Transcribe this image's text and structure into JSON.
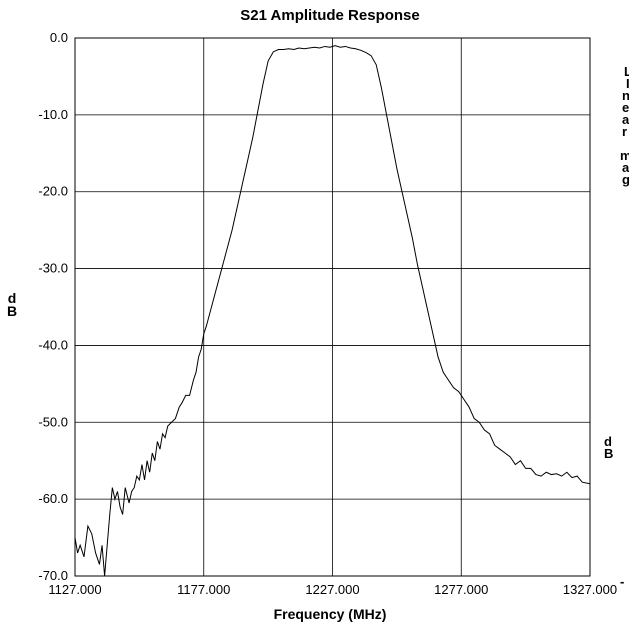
{
  "chart_data": {
    "type": "line",
    "title": "S21  Amplitude Response",
    "xlabel": "Frequency (MHz)",
    "ylabel": "d\nB",
    "xlim": [
      1127,
      1327
    ],
    "ylim": [
      -70,
      0
    ],
    "x_ticks": [
      "1127.000",
      "1177.000",
      "1227.000",
      "1277.000",
      "1327.000"
    ],
    "y_ticks": [
      "0.0",
      "-10.0",
      "-20.0",
      "-30.0",
      "-40.0",
      "-50.0",
      "-60.0",
      "-70.0"
    ],
    "grid": true,
    "series": [
      {
        "name": "",
        "color": "#000000",
        "x": [
          1127.0,
          1128.0,
          1129.0,
          1130.5,
          1132.0,
          1133.5,
          1135.0,
          1136.5,
          1137.5,
          1138.5,
          1139.5,
          1140.5,
          1141.5,
          1142.5,
          1143.5,
          1144.5,
          1145.5,
          1146.5,
          1148.0,
          1149.0,
          1150.0,
          1151.0,
          1152.0,
          1153.0,
          1154.0,
          1155.0,
          1156.0,
          1157.0,
          1158.0,
          1159.0,
          1160.0,
          1161.0,
          1162.0,
          1163.0,
          1164.5,
          1166.0,
          1167.5,
          1168.5,
          1170.0,
          1171.5,
          1173.0,
          1174.0,
          1175.0,
          1176.0,
          1177.0,
          1178.0,
          1180.0,
          1182.0,
          1184.0,
          1186.0,
          1188.0,
          1190.0,
          1192.0,
          1194.0,
          1196.0,
          1198.0,
          1200.0,
          1202.0,
          1204.0,
          1206.0,
          1208.0,
          1210.0,
          1212.0,
          1214.0,
          1216.0,
          1218.0,
          1220.0,
          1222.0,
          1224.0,
          1226.0,
          1228.0,
          1230.0,
          1232.0,
          1234.0,
          1236.0,
          1238.0,
          1240.0,
          1242.0,
          1244.0,
          1246.0,
          1248.0,
          1250.0,
          1252.0,
          1254.0,
          1256.0,
          1258.0,
          1260.0,
          1262.0,
          1264.0,
          1266.0,
          1268.0,
          1270.0,
          1272.0,
          1274.0,
          1276.0,
          1278.0,
          1280.0,
          1282.0,
          1284.0,
          1286.0,
          1288.0,
          1290.0,
          1292.0,
          1294.0,
          1296.0,
          1298.0,
          1300.0,
          1302.0,
          1304.0,
          1306.0,
          1308.0,
          1310.0,
          1312.0,
          1314.0,
          1316.0,
          1318.0,
          1320.0,
          1322.0,
          1324.0,
          1327.0
        ],
        "y": [
          -65.0,
          -67.0,
          -66.0,
          -67.5,
          -63.5,
          -64.5,
          -67.0,
          -68.5,
          -66.0,
          -70.0,
          -66.0,
          -62.0,
          -58.5,
          -60.0,
          -59.0,
          -61.0,
          -62.0,
          -58.5,
          -60.5,
          -59.0,
          -58.5,
          -57.0,
          -57.5,
          -55.5,
          -57.5,
          -55.0,
          -56.5,
          -54.0,
          -55.0,
          -52.5,
          -53.5,
          -51.5,
          -52.0,
          -50.5,
          -50.0,
          -49.5,
          -48.0,
          -47.5,
          -46.5,
          -46.5,
          -44.5,
          -43.5,
          -41.5,
          -40.5,
          -38.5,
          -37.5,
          -35.0,
          -32.5,
          -30.0,
          -27.5,
          -25.0,
          -22.0,
          -19.0,
          -16.0,
          -13.0,
          -9.5,
          -6.0,
          -3.0,
          -1.8,
          -1.5,
          -1.5,
          -1.4,
          -1.5,
          -1.3,
          -1.4,
          -1.3,
          -1.2,
          -1.3,
          -1.1,
          -1.2,
          -1.0,
          -1.2,
          -1.1,
          -1.3,
          -1.4,
          -1.6,
          -1.9,
          -2.3,
          -3.5,
          -6.5,
          -10.0,
          -13.5,
          -17.0,
          -20.0,
          -23.0,
          -26.0,
          -29.5,
          -32.5,
          -35.5,
          -38.5,
          -41.5,
          -43.5,
          -44.5,
          -45.5,
          -46.0,
          -47.0,
          -48.0,
          -49.5,
          -50.0,
          -51.0,
          -51.5,
          -53.0,
          -53.5,
          -54.0,
          -54.5,
          -55.5,
          -55.0,
          -56.0,
          -56.0,
          -56.8,
          -57.0,
          -56.5,
          -56.8,
          -56.7,
          -57.0,
          -56.5,
          -57.2,
          -57.0,
          -57.8,
          -58.0
        ]
      }
    ],
    "side_labels": {
      "top_lines": [
        "L",
        "I",
        "n",
        "e",
        "a",
        "r",
        "",
        "m",
        "a",
        "g"
      ],
      "db_mark": "d\nB",
      "dash": "-"
    }
  }
}
